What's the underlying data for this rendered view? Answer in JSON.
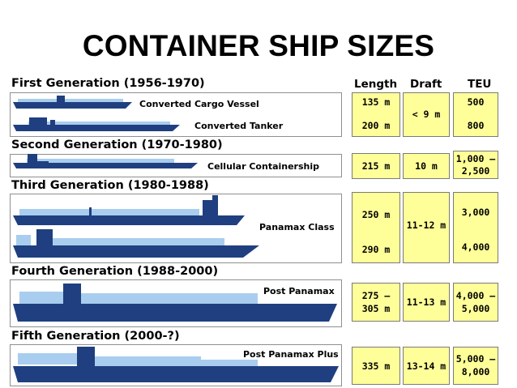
{
  "title": "CONTAINER SHIP SIZES",
  "columns": {
    "length": "Length",
    "draft": "Draft",
    "teu": "TEU"
  },
  "generations": [
    {
      "heading": "First Generation (1956-1970)",
      "ships": [
        {
          "label": "Converted Cargo Vessel",
          "length": "135 m",
          "teu": "500"
        },
        {
          "label": "Converted Tanker",
          "length": "200 m",
          "teu": "800"
        }
      ],
      "draft": "< 9 m"
    },
    {
      "heading": "Second Generation (1970-1980)",
      "ships": [
        {
          "label": "Cellular Containership",
          "length": "215 m",
          "teu_line1": "1,000 –",
          "teu_line2": "2,500"
        }
      ],
      "draft": "10 m"
    },
    {
      "heading": "Third Generation (1980-1988)",
      "ships": [
        {
          "label": "Panamax Class",
          "length": "250 m",
          "teu": "3,000"
        },
        {
          "length": "290 m",
          "teu": "4,000"
        }
      ],
      "draft": "11-12 m"
    },
    {
      "heading": "Fourth Generation (1988-2000)",
      "ships": [
        {
          "label": "Post Panamax",
          "length_line1": "275 –",
          "length_line2": "305 m",
          "teu_line1": "4,000 –",
          "teu_line2": "5,000"
        }
      ],
      "draft": "11-13 m"
    },
    {
      "heading": "Fifth Generation (2000-?)",
      "ships": [
        {
          "label": "Post Panamax Plus",
          "length": "335 m",
          "teu_line1": "5,000 –",
          "teu_line2": "8,000"
        }
      ],
      "draft": "13-14 m"
    }
  ],
  "colors": {
    "hull": "#1f3f80",
    "deck_cargo": "#a9cdee",
    "cell_fill": "#ffff99"
  }
}
